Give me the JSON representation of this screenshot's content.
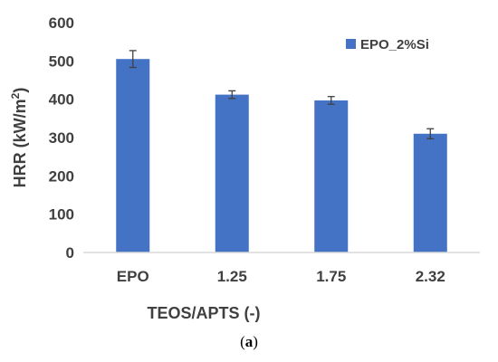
{
  "chart_data": {
    "type": "bar",
    "categories": [
      "EPO",
      "1.25",
      "1.75",
      "2.32"
    ],
    "series": [
      {
        "name": "EPO_2%Si",
        "values": [
          505,
          412,
          397,
          310
        ],
        "error": [
          22,
          10,
          10,
          13
        ]
      }
    ],
    "xlabel": "TEOS/APTS (-)",
    "ylabel": "HRR (kW/m2)",
    "ylim": [
      0,
      600
    ],
    "yticks": [
      0,
      100,
      200,
      300,
      400,
      500,
      600
    ],
    "grid": false,
    "legend_position": "top-right",
    "colors": {
      "bar": "#4472C4",
      "error_bar": "#404040",
      "axis": "#d9d9d9",
      "text": "#404040"
    }
  },
  "caption": {
    "open": "(",
    "letter": "a",
    "close": ")"
  }
}
